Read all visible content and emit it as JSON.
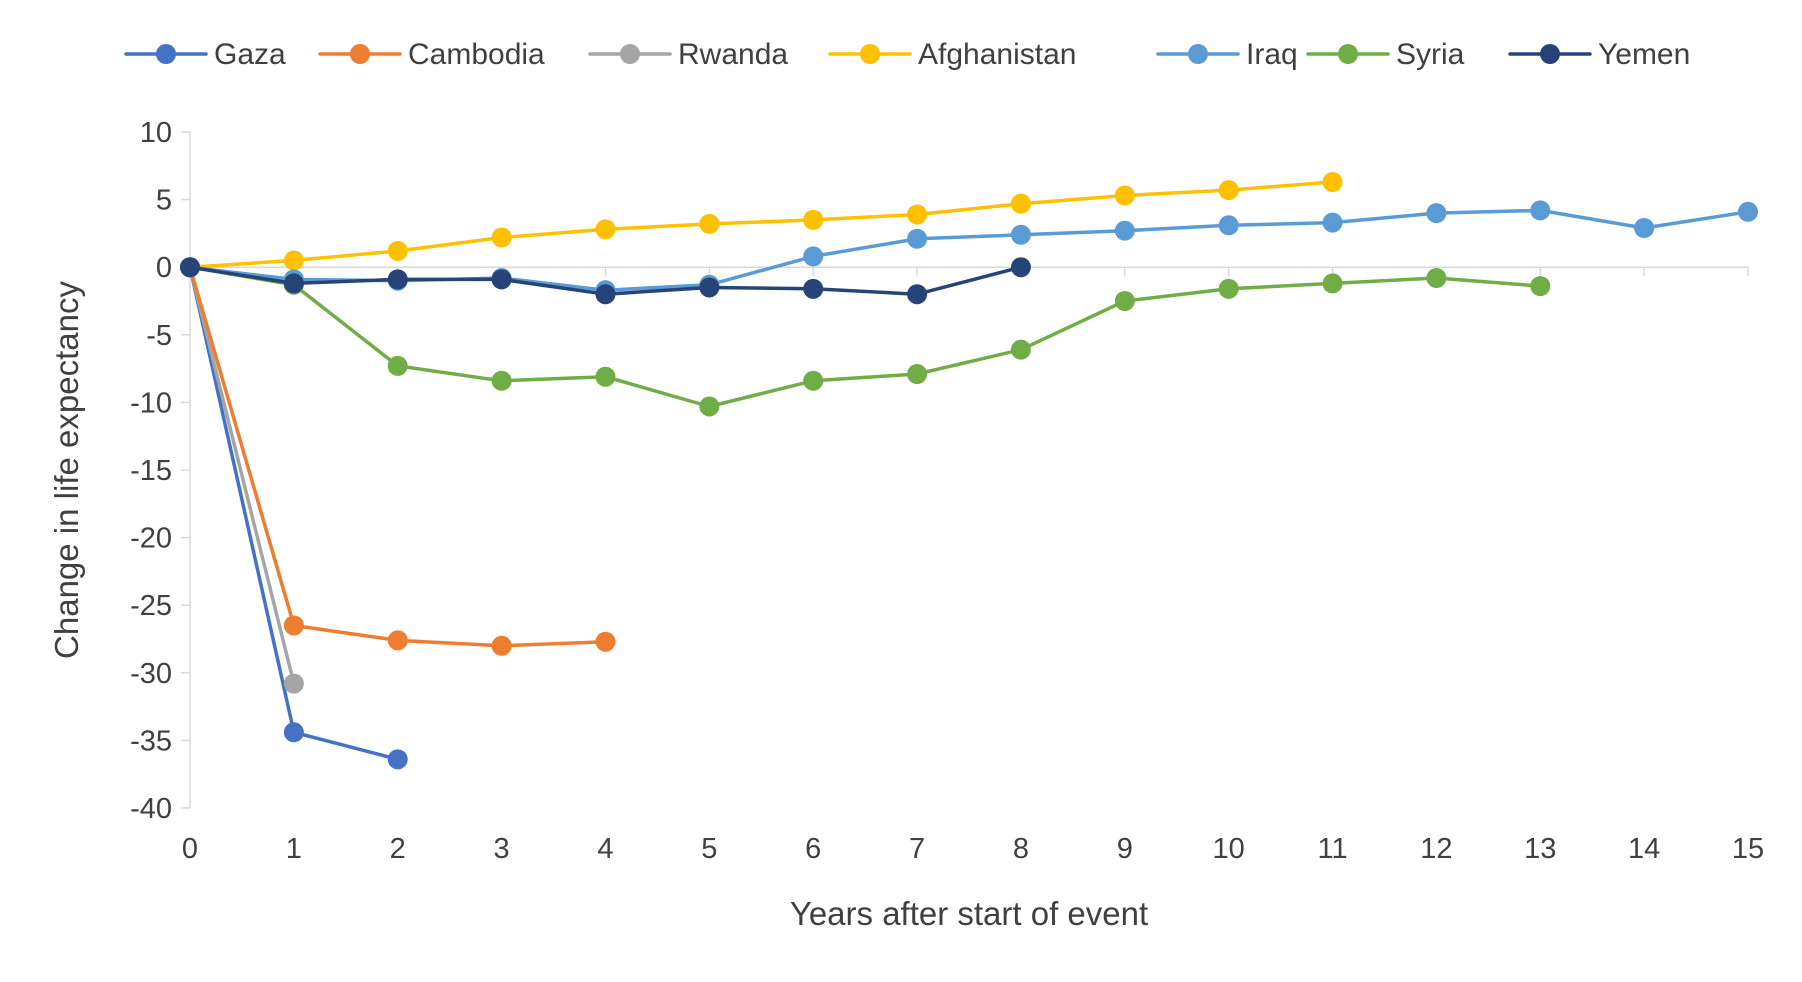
{
  "chart_data": {
    "type": "line",
    "title": "",
    "xlabel": "Years after start of event",
    "ylabel": "Change in life expectancy",
    "xlim": [
      0,
      15
    ],
    "ylim": [
      -40,
      10
    ],
    "x_ticks": [
      0,
      1,
      2,
      3,
      4,
      5,
      6,
      7,
      8,
      9,
      10,
      11,
      12,
      13,
      14,
      15
    ],
    "y_ticks": [
      10,
      5,
      0,
      -5,
      -10,
      -15,
      -20,
      -25,
      -30,
      -35,
      -40
    ],
    "grid": false,
    "legend_position": "top",
    "series": [
      {
        "name": "Gaza",
        "color": "#4472C4",
        "x": [
          0,
          1,
          2
        ],
        "values": [
          0,
          -34.4,
          -36.4
        ]
      },
      {
        "name": "Cambodia",
        "color": "#ED7D31",
        "x": [
          0,
          1,
          2,
          3,
          4
        ],
        "values": [
          0,
          -26.5,
          -27.6,
          -28.0,
          -27.7
        ]
      },
      {
        "name": "Rwanda",
        "color": "#A5A5A5",
        "x": [
          0,
          1
        ],
        "values": [
          0,
          -30.8
        ]
      },
      {
        "name": "Afghanistan",
        "color": "#FFC000",
        "x": [
          0,
          1,
          2,
          3,
          4,
          5,
          6,
          7,
          8,
          9,
          10,
          11
        ],
        "values": [
          0,
          0.5,
          1.2,
          2.2,
          2.8,
          3.2,
          3.5,
          3.9,
          4.7,
          5.3,
          5.7,
          6.3
        ]
      },
      {
        "name": "Iraq",
        "color": "#5B9BD5",
        "x": [
          0,
          1,
          2,
          3,
          4,
          5,
          6,
          7,
          8,
          9,
          10,
          11,
          12,
          13,
          14,
          15
        ],
        "values": [
          0,
          -0.9,
          -1.0,
          -0.8,
          -1.7,
          -1.3,
          0.8,
          2.1,
          2.4,
          2.7,
          3.1,
          3.3,
          4.0,
          4.2,
          2.9,
          4.1
        ]
      },
      {
        "name": "Syria",
        "color": "#70AD47",
        "x": [
          0,
          1,
          2,
          3,
          4,
          5,
          6,
          7,
          8,
          9,
          10,
          11,
          12,
          13
        ],
        "values": [
          0,
          -1.3,
          -7.3,
          -8.4,
          -8.1,
          -10.3,
          -8.4,
          -7.9,
          -6.1,
          -2.5,
          -1.6,
          -1.2,
          -0.8,
          -1.4
        ]
      },
      {
        "name": "Yemen",
        "color": "#264478",
        "x": [
          0,
          1,
          2,
          3,
          4,
          5,
          6,
          7,
          8
        ],
        "values": [
          0,
          -1.2,
          -0.9,
          -0.9,
          -2.0,
          -1.5,
          -1.6,
          -2.0,
          0
        ]
      }
    ]
  }
}
